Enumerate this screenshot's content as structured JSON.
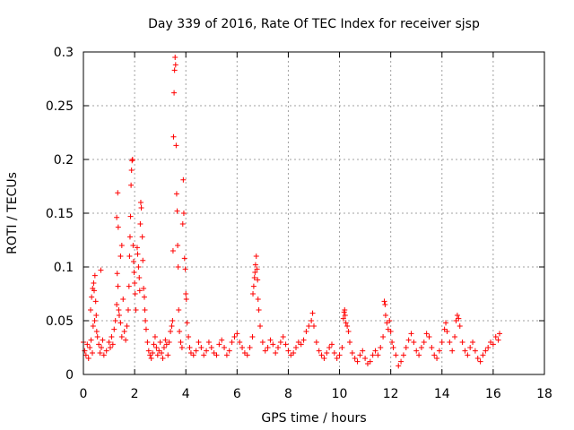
{
  "chart_data": {
    "type": "scatter",
    "title": "Day 339 of 2016, Rate Of TEC Index for receiver sjsp",
    "xlabel": "GPS time / hours",
    "ylabel": "ROTI / TECUs",
    "xlim": [
      0,
      18
    ],
    "ylim": [
      0,
      0.3
    ],
    "xticks": [
      0,
      2,
      4,
      6,
      8,
      10,
      12,
      14,
      16,
      18
    ],
    "yticks": [
      0,
      0.05,
      0.1,
      0.15,
      0.2,
      0.25,
      0.3
    ],
    "xtick_labels": [
      "0",
      "2",
      "4",
      "6",
      "8",
      "10",
      "12",
      "14",
      "16",
      "18"
    ],
    "ytick_labels": [
      "0",
      "0.05",
      "0.1",
      "0.15",
      "0.2",
      "0.25",
      "0.3"
    ],
    "grid": true,
    "marker": "+",
    "color": "#ff0000",
    "series": [
      {
        "name": "ROTI",
        "points": [
          [
            0.0,
            0.03
          ],
          [
            0.05,
            0.022
          ],
          [
            0.1,
            0.018
          ],
          [
            0.15,
            0.028
          ],
          [
            0.2,
            0.015
          ],
          [
            0.25,
            0.025
          ],
          [
            0.3,
            0.032
          ],
          [
            0.35,
            0.02
          ],
          [
            0.28,
            0.06
          ],
          [
            0.32,
            0.072
          ],
          [
            0.36,
            0.08
          ],
          [
            0.4,
            0.085
          ],
          [
            0.42,
            0.078
          ],
          [
            0.45,
            0.092
          ],
          [
            0.48,
            0.068
          ],
          [
            0.5,
            0.055
          ],
          [
            0.38,
            0.045
          ],
          [
            0.44,
            0.05
          ],
          [
            0.52,
            0.04
          ],
          [
            0.55,
            0.035
          ],
          [
            0.6,
            0.028
          ],
          [
            0.65,
            0.02
          ],
          [
            0.7,
            0.025
          ],
          [
            0.75,
            0.032
          ],
          [
            0.68,
            0.097
          ],
          [
            0.8,
            0.018
          ],
          [
            0.9,
            0.022
          ],
          [
            1.0,
            0.03
          ],
          [
            1.05,
            0.025
          ],
          [
            1.1,
            0.035
          ],
          [
            1.15,
            0.028
          ],
          [
            1.2,
            0.042
          ],
          [
            1.25,
            0.05
          ],
          [
            1.3,
            0.065
          ],
          [
            1.32,
            0.094
          ],
          [
            1.35,
            0.082
          ],
          [
            1.38,
            0.06
          ],
          [
            1.4,
            0.055
          ],
          [
            1.45,
            0.048
          ],
          [
            1.5,
            0.035
          ],
          [
            1.3,
            0.146
          ],
          [
            1.34,
            0.169
          ],
          [
            1.36,
            0.137
          ],
          [
            1.45,
            0.11
          ],
          [
            1.5,
            0.12
          ],
          [
            1.55,
            0.07
          ],
          [
            1.6,
            0.04
          ],
          [
            1.65,
            0.032
          ],
          [
            1.7,
            0.045
          ],
          [
            1.75,
            0.06
          ],
          [
            1.78,
            0.082
          ],
          [
            1.8,
            0.11
          ],
          [
            1.82,
            0.128
          ],
          [
            1.84,
            0.147
          ],
          [
            1.86,
            0.176
          ],
          [
            1.88,
            0.19
          ],
          [
            1.9,
            0.199
          ],
          [
            1.92,
            0.2
          ],
          [
            1.94,
            0.12
          ],
          [
            1.96,
            0.105
          ],
          [
            1.98,
            0.095
          ],
          [
            2.0,
            0.085
          ],
          [
            2.02,
            0.075
          ],
          [
            2.05,
            0.06
          ],
          [
            2.1,
            0.118
          ],
          [
            2.12,
            0.112
          ],
          [
            2.15,
            0.1
          ],
          [
            2.18,
            0.09
          ],
          [
            2.2,
            0.078
          ],
          [
            2.22,
            0.14
          ],
          [
            2.24,
            0.16
          ],
          [
            2.26,
            0.155
          ],
          [
            2.3,
            0.128
          ],
          [
            2.32,
            0.106
          ],
          [
            2.35,
            0.08
          ],
          [
            2.38,
            0.072
          ],
          [
            2.4,
            0.06
          ],
          [
            2.42,
            0.05
          ],
          [
            2.45,
            0.042
          ],
          [
            2.5,
            0.03
          ],
          [
            2.55,
            0.022
          ],
          [
            2.6,
            0.018
          ],
          [
            2.65,
            0.015
          ],
          [
            2.7,
            0.02
          ],
          [
            2.75,
            0.028
          ],
          [
            2.8,
            0.035
          ],
          [
            2.85,
            0.025
          ],
          [
            2.9,
            0.018
          ],
          [
            2.95,
            0.022
          ],
          [
            3.0,
            0.03
          ],
          [
            3.05,
            0.02
          ],
          [
            3.1,
            0.015
          ],
          [
            3.15,
            0.025
          ],
          [
            3.2,
            0.032
          ],
          [
            3.25,
            0.028
          ],
          [
            3.3,
            0.018
          ],
          [
            3.35,
            0.03
          ],
          [
            3.4,
            0.04
          ],
          [
            3.45,
            0.045
          ],
          [
            3.48,
            0.05
          ],
          [
            3.5,
            0.115
          ],
          [
            3.52,
            0.221
          ],
          [
            3.54,
            0.262
          ],
          [
            3.56,
            0.283
          ],
          [
            3.58,
            0.295
          ],
          [
            3.6,
            0.288
          ],
          [
            3.62,
            0.213
          ],
          [
            3.64,
            0.168
          ],
          [
            3.66,
            0.152
          ],
          [
            3.68,
            0.12
          ],
          [
            3.7,
            0.1
          ],
          [
            3.72,
            0.06
          ],
          [
            3.75,
            0.04
          ],
          [
            3.8,
            0.03
          ],
          [
            3.85,
            0.025
          ],
          [
            3.88,
            0.14
          ],
          [
            3.9,
            0.181
          ],
          [
            3.92,
            0.15
          ],
          [
            3.95,
            0.108
          ],
          [
            3.98,
            0.098
          ],
          [
            4.0,
            0.075
          ],
          [
            4.02,
            0.07
          ],
          [
            4.05,
            0.048
          ],
          [
            4.1,
            0.035
          ],
          [
            4.15,
            0.025
          ],
          [
            4.2,
            0.02
          ],
          [
            4.3,
            0.018
          ],
          [
            4.4,
            0.022
          ],
          [
            4.5,
            0.03
          ],
          [
            4.6,
            0.025
          ],
          [
            4.7,
            0.018
          ],
          [
            4.8,
            0.022
          ],
          [
            4.9,
            0.03
          ],
          [
            5.0,
            0.025
          ],
          [
            5.1,
            0.02
          ],
          [
            5.2,
            0.018
          ],
          [
            5.3,
            0.028
          ],
          [
            5.4,
            0.032
          ],
          [
            5.5,
            0.025
          ],
          [
            5.6,
            0.018
          ],
          [
            5.7,
            0.022
          ],
          [
            5.8,
            0.03
          ],
          [
            5.9,
            0.035
          ],
          [
            6.0,
            0.038
          ],
          [
            6.1,
            0.03
          ],
          [
            6.2,
            0.025
          ],
          [
            6.3,
            0.02
          ],
          [
            6.4,
            0.018
          ],
          [
            6.5,
            0.025
          ],
          [
            6.6,
            0.035
          ],
          [
            6.62,
            0.075
          ],
          [
            6.65,
            0.082
          ],
          [
            6.68,
            0.09
          ],
          [
            6.7,
            0.095
          ],
          [
            6.72,
            0.102
          ],
          [
            6.75,
            0.11
          ],
          [
            6.78,
            0.098
          ],
          [
            6.8,
            0.088
          ],
          [
            6.82,
            0.07
          ],
          [
            6.85,
            0.06
          ],
          [
            6.9,
            0.045
          ],
          [
            7.0,
            0.03
          ],
          [
            7.1,
            0.022
          ],
          [
            7.2,
            0.025
          ],
          [
            7.3,
            0.032
          ],
          [
            7.4,
            0.028
          ],
          [
            7.5,
            0.02
          ],
          [
            7.6,
            0.025
          ],
          [
            7.7,
            0.03
          ],
          [
            7.8,
            0.035
          ],
          [
            7.9,
            0.028
          ],
          [
            8.0,
            0.022
          ],
          [
            8.1,
            0.018
          ],
          [
            8.2,
            0.02
          ],
          [
            8.3,
            0.025
          ],
          [
            8.4,
            0.03
          ],
          [
            8.5,
            0.028
          ],
          [
            8.6,
            0.032
          ],
          [
            8.7,
            0.04
          ],
          [
            8.8,
            0.045
          ],
          [
            8.9,
            0.05
          ],
          [
            8.95,
            0.057
          ],
          [
            9.0,
            0.045
          ],
          [
            9.1,
            0.03
          ],
          [
            9.2,
            0.022
          ],
          [
            9.3,
            0.018
          ],
          [
            9.4,
            0.015
          ],
          [
            9.5,
            0.02
          ],
          [
            9.6,
            0.025
          ],
          [
            9.7,
            0.028
          ],
          [
            9.8,
            0.02
          ],
          [
            9.9,
            0.015
          ],
          [
            10.0,
            0.018
          ],
          [
            10.1,
            0.025
          ],
          [
            10.15,
            0.052
          ],
          [
            10.18,
            0.058
          ],
          [
            10.2,
            0.06
          ],
          [
            10.22,
            0.055
          ],
          [
            10.25,
            0.048
          ],
          [
            10.3,
            0.045
          ],
          [
            10.35,
            0.04
          ],
          [
            10.4,
            0.03
          ],
          [
            10.5,
            0.02
          ],
          [
            10.6,
            0.015
          ],
          [
            10.7,
            0.012
          ],
          [
            10.8,
            0.018
          ],
          [
            10.9,
            0.022
          ],
          [
            11.0,
            0.015
          ],
          [
            11.1,
            0.01
          ],
          [
            11.2,
            0.012
          ],
          [
            11.3,
            0.018
          ],
          [
            11.4,
            0.022
          ],
          [
            11.5,
            0.018
          ],
          [
            11.6,
            0.025
          ],
          [
            11.7,
            0.035
          ],
          [
            11.75,
            0.068
          ],
          [
            11.78,
            0.065
          ],
          [
            11.8,
            0.055
          ],
          [
            11.85,
            0.048
          ],
          [
            11.9,
            0.042
          ],
          [
            11.95,
            0.05
          ],
          [
            12.0,
            0.04
          ],
          [
            12.05,
            0.03
          ],
          [
            12.1,
            0.025
          ],
          [
            12.2,
            0.018
          ],
          [
            12.3,
            0.008
          ],
          [
            12.4,
            0.012
          ],
          [
            12.5,
            0.018
          ],
          [
            12.6,
            0.025
          ],
          [
            12.7,
            0.032
          ],
          [
            12.8,
            0.038
          ],
          [
            12.9,
            0.03
          ],
          [
            13.0,
            0.022
          ],
          [
            13.1,
            0.018
          ],
          [
            13.2,
            0.025
          ],
          [
            13.3,
            0.03
          ],
          [
            13.4,
            0.038
          ],
          [
            13.5,
            0.035
          ],
          [
            13.6,
            0.025
          ],
          [
            13.7,
            0.018
          ],
          [
            13.8,
            0.015
          ],
          [
            13.9,
            0.022
          ],
          [
            14.0,
            0.03
          ],
          [
            14.1,
            0.042
          ],
          [
            14.15,
            0.048
          ],
          [
            14.2,
            0.04
          ],
          [
            14.3,
            0.03
          ],
          [
            14.4,
            0.022
          ],
          [
            14.5,
            0.035
          ],
          [
            14.55,
            0.05
          ],
          [
            14.6,
            0.055
          ],
          [
            14.65,
            0.052
          ],
          [
            14.7,
            0.045
          ],
          [
            14.8,
            0.03
          ],
          [
            14.9,
            0.022
          ],
          [
            15.0,
            0.018
          ],
          [
            15.1,
            0.025
          ],
          [
            15.2,
            0.03
          ],
          [
            15.3,
            0.022
          ],
          [
            15.4,
            0.015
          ],
          [
            15.5,
            0.012
          ],
          [
            15.6,
            0.018
          ],
          [
            15.7,
            0.022
          ],
          [
            15.8,
            0.025
          ],
          [
            15.9,
            0.03
          ],
          [
            16.0,
            0.028
          ],
          [
            16.1,
            0.035
          ],
          [
            16.2,
            0.032
          ],
          [
            16.25,
            0.038
          ]
        ]
      }
    ]
  }
}
